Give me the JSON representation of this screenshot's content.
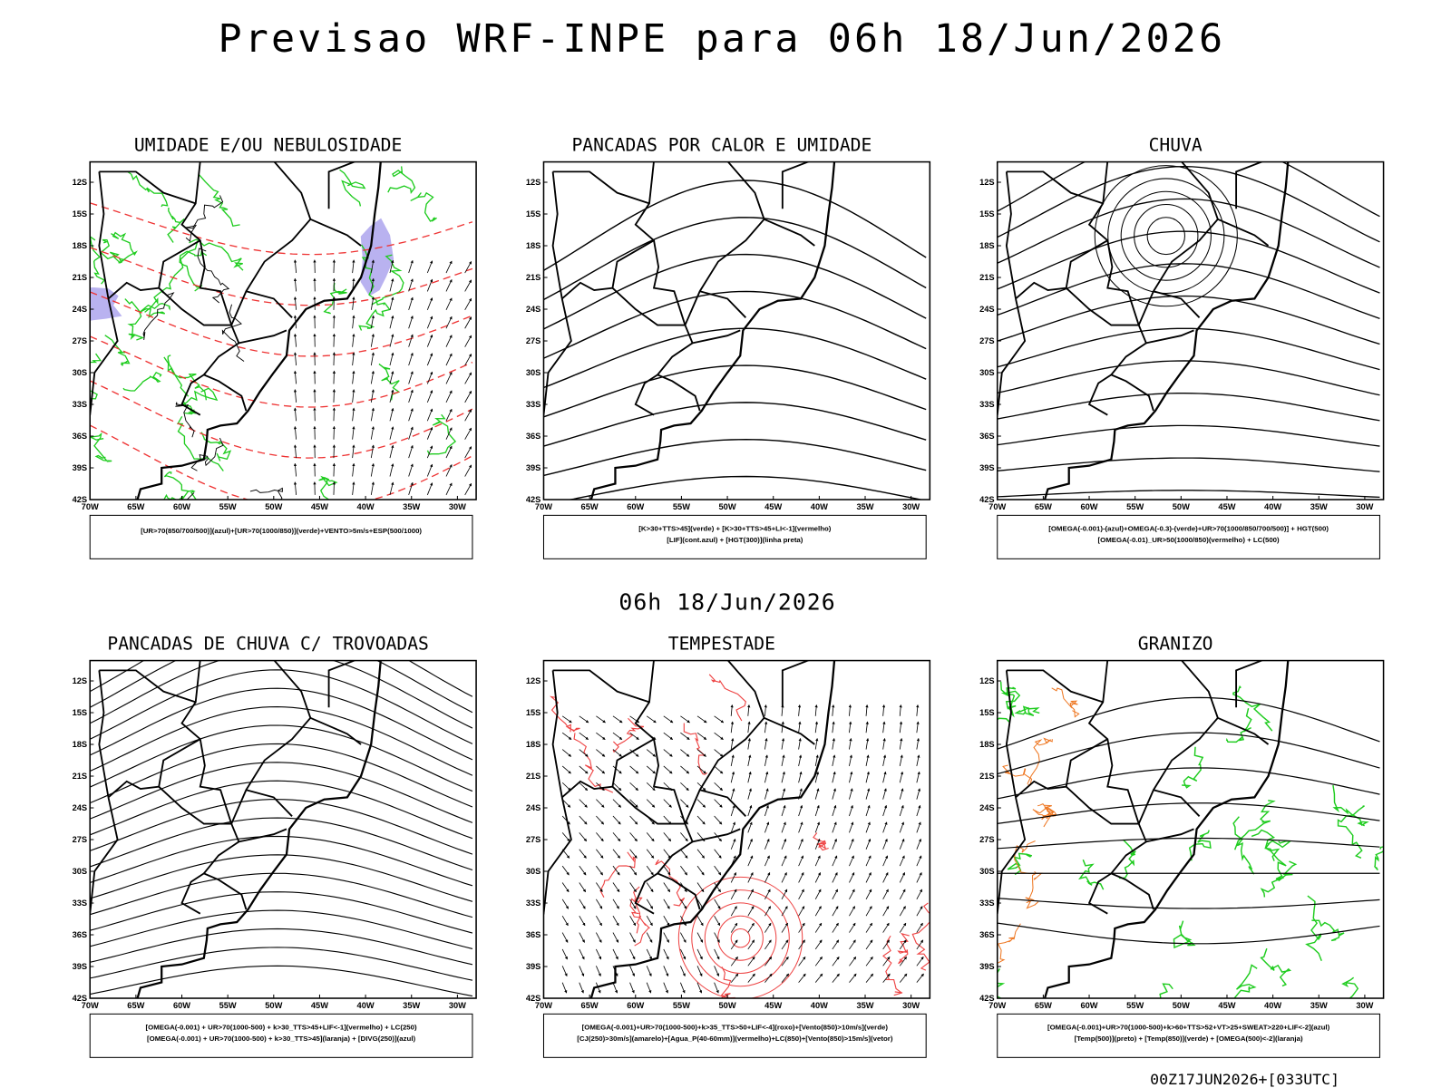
{
  "title": "Previsao WRF-INPE  para 06h 18/Jun/2026",
  "valid_time": "06h 18/Jun/2026",
  "run_label": "00Z17JUN2026+[033UTC]",
  "axes": {
    "lat_labels": [
      "12S",
      "15S",
      "18S",
      "21S",
      "24S",
      "27S",
      "30S",
      "33S",
      "36S",
      "39S",
      "42S"
    ],
    "lon_labels": [
      "70W",
      "65W",
      "60W",
      "55W",
      "50W",
      "45W",
      "40W",
      "35W",
      "30W"
    ]
  },
  "panels": [
    {
      "title": "UMIDADE E/OU NEBULOSIDADE",
      "caption": [
        "[UR>70(850/700/500)](azul)+[UR>70(1000/850)](verde)+VENTO>5m/s+ESP(500/1000)"
      ]
    },
    {
      "title": "PANCADAS POR CALOR E UMIDADE",
      "caption": [
        "[K>30+TTS>45](verde) + [K>30+TTS>45+LI<-1](vermelho)",
        "[LIF](cont.azul) + [HGT(300)](linha preta)"
      ]
    },
    {
      "title": "CHUVA",
      "caption": [
        "[OMEGA(-0.001)-(azul)+OMEGA(-0.3)-(verde)+UR>70(1000/850/700/500)] + HGT(500)",
        "[OMEGA(-0.01)_UR>50(1000/850)(vermelho) + LC(500)"
      ]
    },
    {
      "title": "PANCADAS DE CHUVA C/ TROVOADAS",
      "caption": [
        "[OMEGA(-0.001) + UR>70(1000-500) + k>30_TTS>45+LIF<-1](vermelho) + LC(250)",
        "[OMEGA(-0.001) + UR>70(1000-500) + k>30_TTS>45](laranja) + [DIVG(250)](azul)"
      ]
    },
    {
      "title": "TEMPESTADE",
      "caption": [
        "[OMEGA(-0.001)+UR>70(1000-500)+k>35_TTS>50+LIF<-4](roxo)+[Vento(850)>10m/s](verde)",
        "[CJ(250)>30m/s](amarelo)+[Agua_P(40-60mm)](vermelho)+LC(850)+[Vento(850)>15m/s](vetor)"
      ]
    },
    {
      "title": "GRANIZO",
      "caption": [
        "[OMEGA(-0.001)+UR>70(1000-500)+k>60+TTS>52+VT>25+SWEAT>220+LIF<-2](azul)",
        "[Temp(500)](preto) + [Temp(850)](verde) + [OMEGA(500)<-2](laranja)"
      ]
    }
  ]
}
